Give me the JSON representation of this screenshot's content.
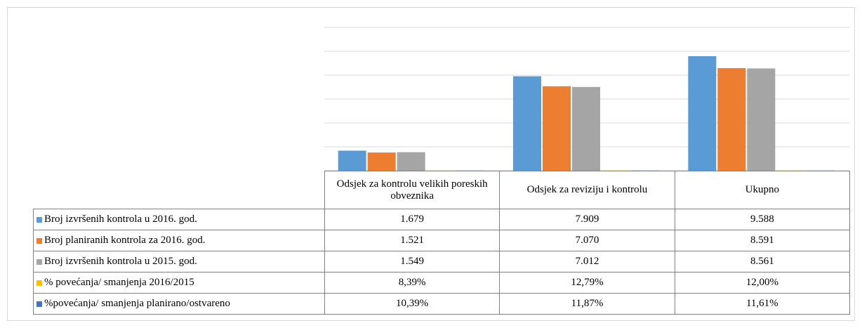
{
  "chart_data": {
    "type": "bar",
    "categories": [
      "Odsjek za kontrolu velikih poreskih obveznika",
      "Odsjek za reviziju i kontrolu",
      "Ukupno"
    ],
    "series": [
      {
        "name": "Broj izvršenih kontrola u 2016. god.",
        "color": "#5b9bd5",
        "values": [
          1679,
          7909,
          9588
        ],
        "value_labels": [
          "1.679",
          "7.909",
          "9.588"
        ]
      },
      {
        "name": "Broj planiranih kontrola za 2016. god.",
        "color": "#ed7d31",
        "values": [
          1521,
          7070,
          8591
        ],
        "value_labels": [
          "1.521",
          "7.070",
          "8.591"
        ]
      },
      {
        "name": "Broj izvršenih kontrola u 2015. god.",
        "color": "#a5a5a5",
        "values": [
          1549,
          7012,
          8561
        ],
        "value_labels": [
          "1.549",
          "7.012",
          "8.561"
        ]
      },
      {
        "name": "% povećanja/ smanjenja 2016/2015",
        "color": "#ffc000",
        "values": [
          8.39,
          12.79,
          12.0
        ],
        "value_labels": [
          "8,39%",
          "12,79%",
          "12,00%"
        ]
      },
      {
        "name": "%povećanja/ smanjenja planirano/ostvareno",
        "color": "#4472c4",
        "values": [
          10.39,
          11.87,
          11.61
        ],
        "value_labels": [
          "10,39%",
          "11,87%",
          "11,61%"
        ]
      }
    ],
    "ylim": [
      0,
      12000
    ],
    "yticks": [
      0,
      2000,
      4000,
      6000,
      8000,
      10000,
      12000
    ],
    "grid": true
  }
}
